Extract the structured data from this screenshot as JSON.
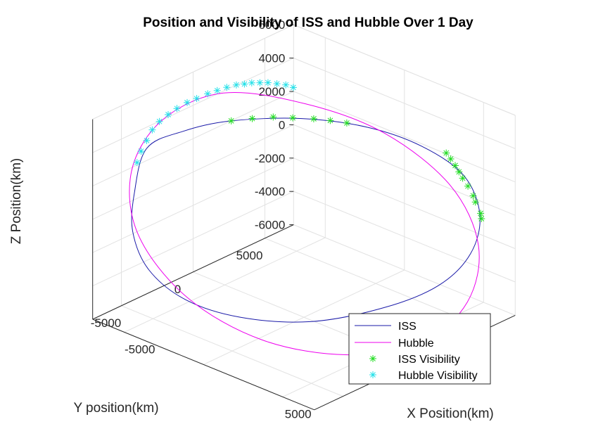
{
  "chart_data": {
    "type": "line3d",
    "title": "Position and Visibility of ISS and Hubble Over 1 Day",
    "xlabel": "X Position(km)",
    "ylabel": "Y position(km)",
    "zlabel": "Z Position(km)",
    "x_ticks": [
      "-5000",
      "5000"
    ],
    "y_ticks": [
      "5000",
      "0",
      "-5000"
    ],
    "z_ticks": [
      "6000",
      "4000",
      "2000",
      "0",
      "-2000",
      "-4000",
      "-6000"
    ],
    "grid": true,
    "legend_position": "bottom-right",
    "legend": [
      "ISS",
      "Hubble",
      "ISS Visibility",
      "Hubble Visibility"
    ],
    "colors": {
      "iss": "#1a1aa8",
      "hubble": "#ee00ee",
      "iss_visibility": "#22dd22",
      "hubble_visibility": "#22e0e8",
      "grid": "#e2e2e2",
      "axis": "#262626"
    },
    "series": [
      {
        "name": "ISS",
        "type": "line",
        "approx_points_xyz_km": [
          [
            -4400,
            -6100,
            4900
          ],
          [
            -3200,
            -4900,
            5900
          ],
          [
            -1600,
            -3300,
            6500
          ],
          [
            500,
            -700,
            6400
          ],
          [
            2400,
            1800,
            5600
          ],
          [
            3900,
            3900,
            4200
          ],
          [
            5000,
            5600,
            2200
          ],
          [
            5400,
            6300,
            -300
          ],
          [
            4900,
            6200,
            -2800
          ],
          [
            3700,
            5300,
            -4800
          ],
          [
            1900,
            3500,
            -6100
          ],
          [
            -300,
            800,
            -6700
          ],
          [
            -2400,
            -1800,
            -6200
          ],
          [
            -3900,
            -3900,
            -4900
          ],
          [
            -4800,
            -5500,
            -2800
          ],
          [
            -5100,
            -6300,
            -300
          ],
          [
            -4900,
            -6400,
            2200
          ]
        ]
      },
      {
        "name": "Hubble",
        "type": "line",
        "approx_points_xyz_km": [
          [
            -5900,
            900,
            4800
          ],
          [
            -3400,
            3900,
            3900
          ],
          [
            -400,
            6100,
            2400
          ],
          [
            2900,
            7000,
            200
          ],
          [
            5400,
            6200,
            -2100
          ],
          [
            6700,
            4000,
            -4100
          ],
          [
            6600,
            1000,
            -5300
          ],
          [
            4800,
            -2200,
            -5500
          ],
          [
            1900,
            -5000,
            -4600
          ],
          [
            -1300,
            -6700,
            -2600
          ],
          [
            -4200,
            -6900,
            100
          ],
          [
            -6000,
            -5400,
            2600
          ],
          [
            -6500,
            -2700,
            4400
          ]
        ]
      },
      {
        "name": "ISS Visibility",
        "type": "scatter",
        "marker": "asterisk",
        "approx_points_xyz_km": [
          [
            -1600,
            -3300,
            6500
          ],
          [
            -1000,
            -2500,
            6550
          ],
          [
            -400,
            -1700,
            6550
          ],
          [
            200,
            -1000,
            6450
          ],
          [
            800,
            -200,
            6300
          ],
          [
            1300,
            400,
            6150
          ],
          [
            1800,
            1000,
            5950
          ],
          [
            5500,
            6300,
            -500
          ],
          [
            5450,
            6300,
            -200
          ],
          [
            5300,
            6100,
            500
          ],
          [
            5250,
            6000,
            900
          ],
          [
            5100,
            5800,
            1500
          ],
          [
            4950,
            5600,
            2000
          ],
          [
            4850,
            5450,
            2400
          ],
          [
            4750,
            5300,
            2800
          ],
          [
            4600,
            5150,
            3200
          ],
          [
            4500,
            4950,
            3600
          ]
        ]
      },
      {
        "name": "Hubble Visibility",
        "type": "scatter",
        "marker": "asterisk",
        "approx_points_xyz_km": [
          [
            -6100,
            -4900,
            2900
          ],
          [
            -6300,
            -4400,
            3300
          ],
          [
            -6400,
            -3900,
            3700
          ],
          [
            -6500,
            -3400,
            4100
          ],
          [
            -6500,
            -2900,
            4400
          ],
          [
            -6400,
            -2400,
            4650
          ],
          [
            -6300,
            -1900,
            4850
          ],
          [
            -6200,
            -1300,
            5000
          ],
          [
            -6050,
            -800,
            5100
          ],
          [
            -5900,
            -200,
            5200
          ],
          [
            -5750,
            300,
            5250
          ],
          [
            -5600,
            800,
            5300
          ],
          [
            -5450,
            1300,
            5300
          ],
          [
            -5300,
            1700,
            5250
          ],
          [
            -5200,
            2100,
            5200
          ],
          [
            -5050,
            2500,
            5100
          ],
          [
            -4900,
            2900,
            5000
          ],
          [
            -4700,
            3300,
            4850
          ],
          [
            -4500,
            3700,
            4700
          ],
          [
            -4300,
            4000,
            4500
          ]
        ]
      }
    ]
  }
}
